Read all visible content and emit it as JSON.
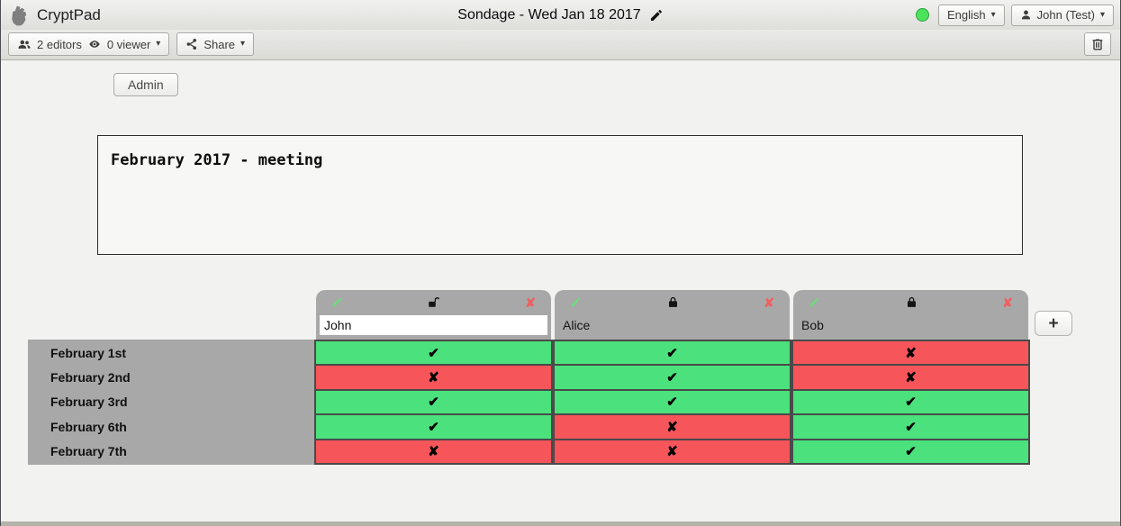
{
  "topbar": {
    "app_name": "CryptPad",
    "title": "Sondage - Wed Jan 18 2017",
    "language": "English",
    "user": "John (Test)"
  },
  "toolbar": {
    "editors_label": "2 editors",
    "viewers_label": "0 viewer",
    "share_label": "Share"
  },
  "admin_button": "Admin",
  "description": "February 2017 - meeting",
  "poll": {
    "columns": [
      {
        "name": "John",
        "editable": true,
        "locked": false
      },
      {
        "name": "Alice",
        "editable": false,
        "locked": true
      },
      {
        "name": "Bob",
        "editable": false,
        "locked": true
      }
    ],
    "rows": [
      {
        "label": "February 1st",
        "votes": [
          "yes",
          "yes",
          "no"
        ]
      },
      {
        "label": "February 2nd",
        "votes": [
          "no",
          "yes",
          "no"
        ]
      },
      {
        "label": "February 3rd",
        "votes": [
          "yes",
          "yes",
          "yes"
        ]
      },
      {
        "label": "February 6th",
        "votes": [
          "yes",
          "no",
          "yes"
        ]
      },
      {
        "label": "February 7th",
        "votes": [
          "no",
          "no",
          "yes"
        ]
      }
    ],
    "add_column_label": "+"
  },
  "glyphs": {
    "caret": "▾",
    "yes": "✔",
    "no": "✘",
    "remove": "✘"
  },
  "icons": {
    "logo": "fist-icon",
    "editors": "users-icon",
    "viewers": "eye-icon",
    "share": "share-icon",
    "edit_title": "pencil-icon",
    "trash": "trash-icon",
    "user": "user-icon",
    "column_edit": "pencil-icon",
    "column_locked": "lock-icon",
    "column_unlocked": "unlock-icon",
    "column_remove": "x-icon",
    "vote_yes": "check-glyph",
    "vote_no": "x-glyph"
  },
  "colors": {
    "yes_bg": "#4be17c",
    "no_bg": "#f6555a",
    "header_bg": "#a8a8a8",
    "grid_border": "#4a4a4a",
    "status_dot": "#4ce25b",
    "remove_icon": "#ef6060",
    "edit_pencil": "#6fd97f"
  }
}
